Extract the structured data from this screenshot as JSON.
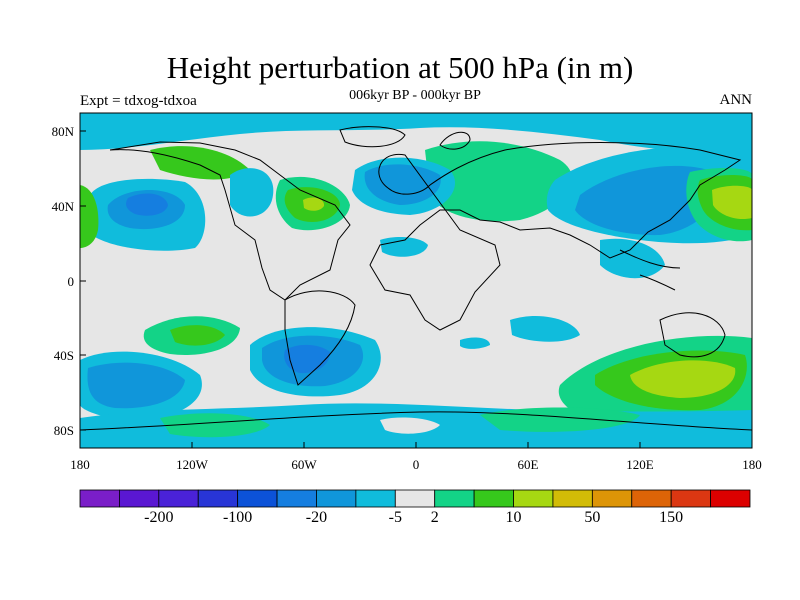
{
  "title": "Height perturbation at 500 hPa (in m)",
  "subtitle": "006kyr BP - 000kyr BP",
  "left_label": "Expt = tdxog-tdxoa",
  "right_label": "ANN",
  "map": {
    "projection": "cylindrical equidistant",
    "lat_ticks": [
      "80N",
      "40N",
      "0",
      "40S",
      "80S"
    ],
    "lon_ticks": [
      "180",
      "120W",
      "60W",
      "0",
      "60E",
      "120E",
      "180"
    ]
  },
  "colorbar": {
    "colors": [
      "#7a1ec8",
      "#5a17d2",
      "#4a22d8",
      "#2835d6",
      "#0c52d8",
      "#157ee0",
      "#1096da",
      "#10bcdc",
      "#e6e6e6",
      "#13d387",
      "#36c81c",
      "#a6d812",
      "#d2bc07",
      "#dd9507",
      "#dd6407",
      "#db3712",
      "#dc0000"
    ],
    "labels": [
      "-200",
      "-100",
      "-20",
      "-5",
      "2",
      "10",
      "50",
      "150"
    ]
  }
}
